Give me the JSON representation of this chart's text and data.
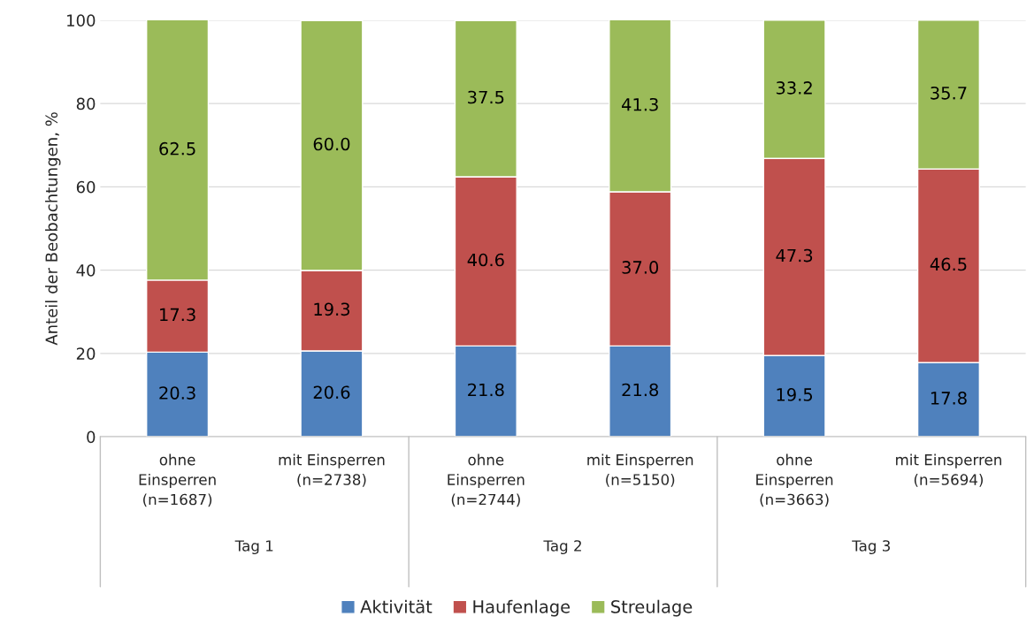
{
  "chart_data": {
    "type": "bar",
    "stacked": true,
    "ylabel": "Anteil der Beobachtungen, %",
    "categories": [
      "ohne\nEinsperren\n(n=1687)",
      "mit Einsperren\n(n=2738)",
      "ohne\nEinsperren\n(n=2744)",
      "mit Einsperren\n(n=5150)",
      "ohne\nEinsperren\n(n=3663)",
      "mit Einsperren\n(n=5694)"
    ],
    "annotations": [
      "Tag 1",
      "Tag 2",
      "Tag 3"
    ],
    "series": [
      {
        "name": "Aktivität",
        "color": "#4f81bd",
        "values": [
          20.3,
          20.6,
          21.8,
          21.8,
          19.5,
          17.8
        ],
        "value_labels": [
          "20.3",
          "20.6",
          "21.8",
          "21.8",
          "19.5",
          "17.8"
        ]
      },
      {
        "name": "Haufenlage",
        "color": "#c0504d",
        "values": [
          17.3,
          19.3,
          40.6,
          37.0,
          47.3,
          46.5
        ],
        "value_labels": [
          "17.3",
          "19.3",
          "40.6",
          "37.0",
          "47.3",
          "46.5"
        ]
      },
      {
        "name": "Streulage",
        "color": "#9bbb59",
        "values": [
          62.5,
          60.0,
          37.5,
          41.3,
          33.2,
          35.7
        ],
        "value_labels": [
          "62.5",
          "60.0",
          "37.5",
          "41.3",
          "33.2",
          "35.7"
        ]
      }
    ],
    "ylim": [
      0,
      100
    ],
    "yticks": [
      0,
      20,
      40,
      60,
      80,
      100
    ],
    "grid": "y",
    "legend": "bottom"
  }
}
